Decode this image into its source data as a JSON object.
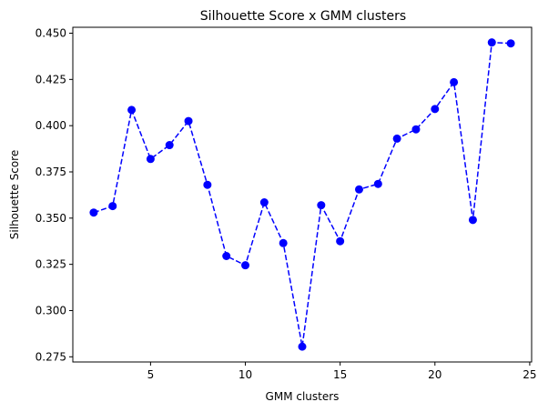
{
  "chart_data": {
    "type": "line",
    "title": "Silhouette Score  x  GMM clusters",
    "xlabel": "GMM clusters",
    "ylabel": "Silhouette Score",
    "x": [
      2,
      3,
      4,
      5,
      6,
      7,
      8,
      9,
      10,
      11,
      12,
      13,
      14,
      15,
      16,
      17,
      18,
      19,
      20,
      21,
      22,
      23,
      24
    ],
    "series": [
      {
        "values": [
          0.353,
          0.3565,
          0.4085,
          0.382,
          0.3895,
          0.4025,
          0.368,
          0.3295,
          0.3245,
          0.3585,
          0.3365,
          0.2805,
          0.357,
          0.3375,
          0.3655,
          0.3685,
          0.393,
          0.398,
          0.409,
          0.4235,
          0.349,
          0.445,
          0.4445
        ],
        "color": "#0000ff",
        "line_style": "dashed",
        "marker": "circle"
      }
    ],
    "xlim": [
      0.9,
      25.1
    ],
    "ylim": [
      0.2722,
      0.4532
    ],
    "xticks": [
      5,
      10,
      15,
      20,
      25
    ],
    "yticks": [
      0.275,
      0.3,
      0.325,
      0.35,
      0.375,
      0.4,
      0.425,
      0.45
    ],
    "xtick_labels": [
      "5",
      "10",
      "15",
      "20",
      "25"
    ],
    "ytick_labels": [
      "0.275",
      "0.300",
      "0.325",
      "0.350",
      "0.375",
      "0.400",
      "0.425",
      "0.450"
    ],
    "grid": false
  }
}
